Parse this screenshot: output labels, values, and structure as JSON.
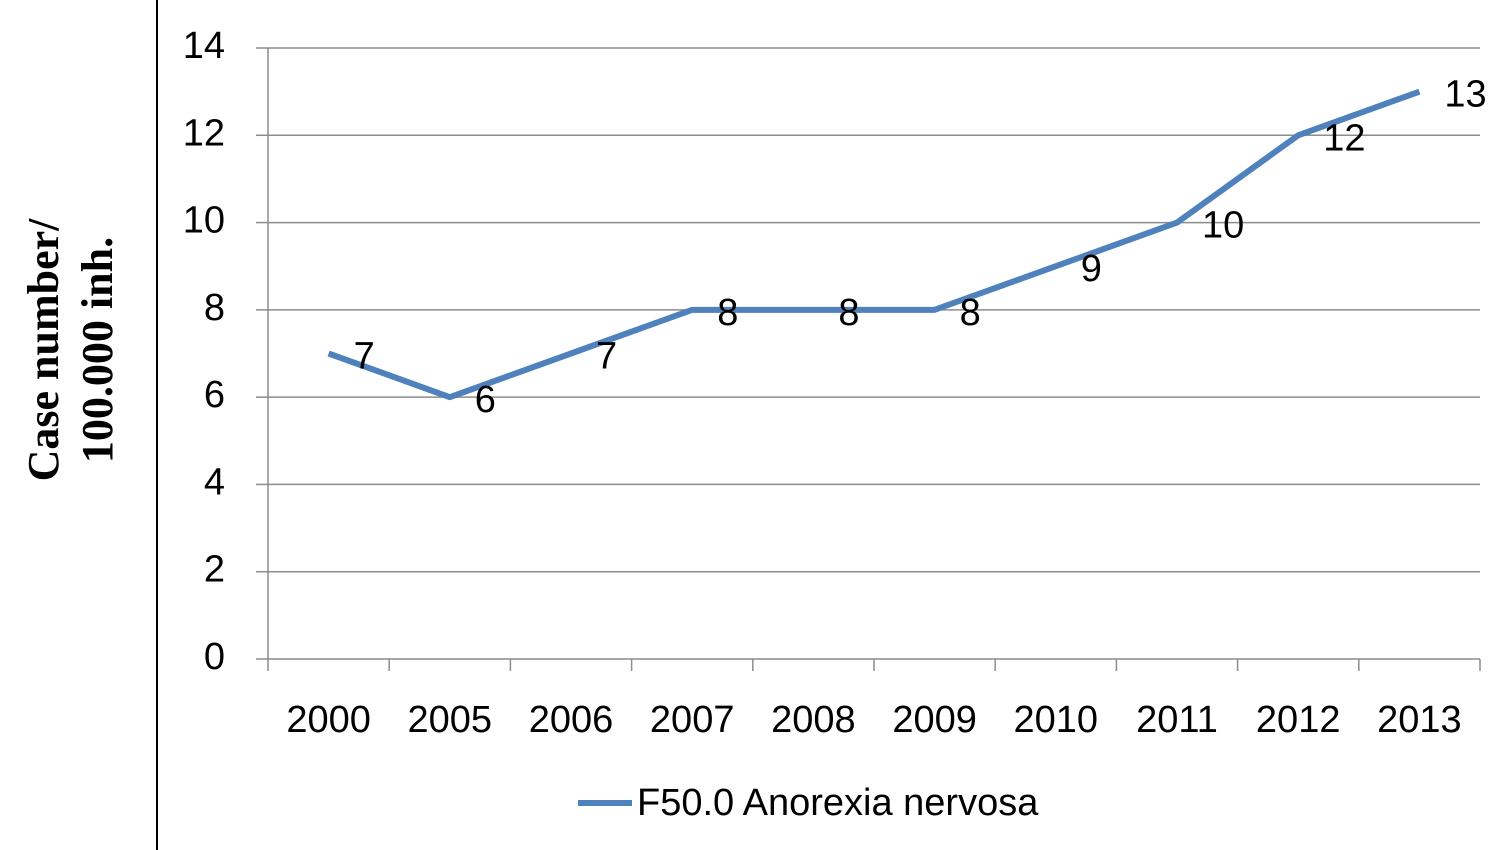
{
  "chart_data": {
    "type": "line",
    "y_label_lines": [
      "Case number/",
      "100.000 inh."
    ],
    "categories": [
      "2000",
      "2005",
      "2006",
      "2007",
      "2008",
      "2009",
      "2010",
      "2011",
      "2012",
      "2013"
    ],
    "series": [
      {
        "name": "F50.0 Anorexia nervosa",
        "color": "#4f81bd",
        "values": [
          7,
          6,
          7,
          8,
          8,
          8,
          9,
          10,
          12,
          13
        ]
      }
    ],
    "ylim": [
      0,
      14
    ],
    "yticks": [
      0,
      2,
      4,
      6,
      8,
      10,
      12,
      14
    ],
    "grid": true,
    "legend": "bottom",
    "data_labels": true
  }
}
